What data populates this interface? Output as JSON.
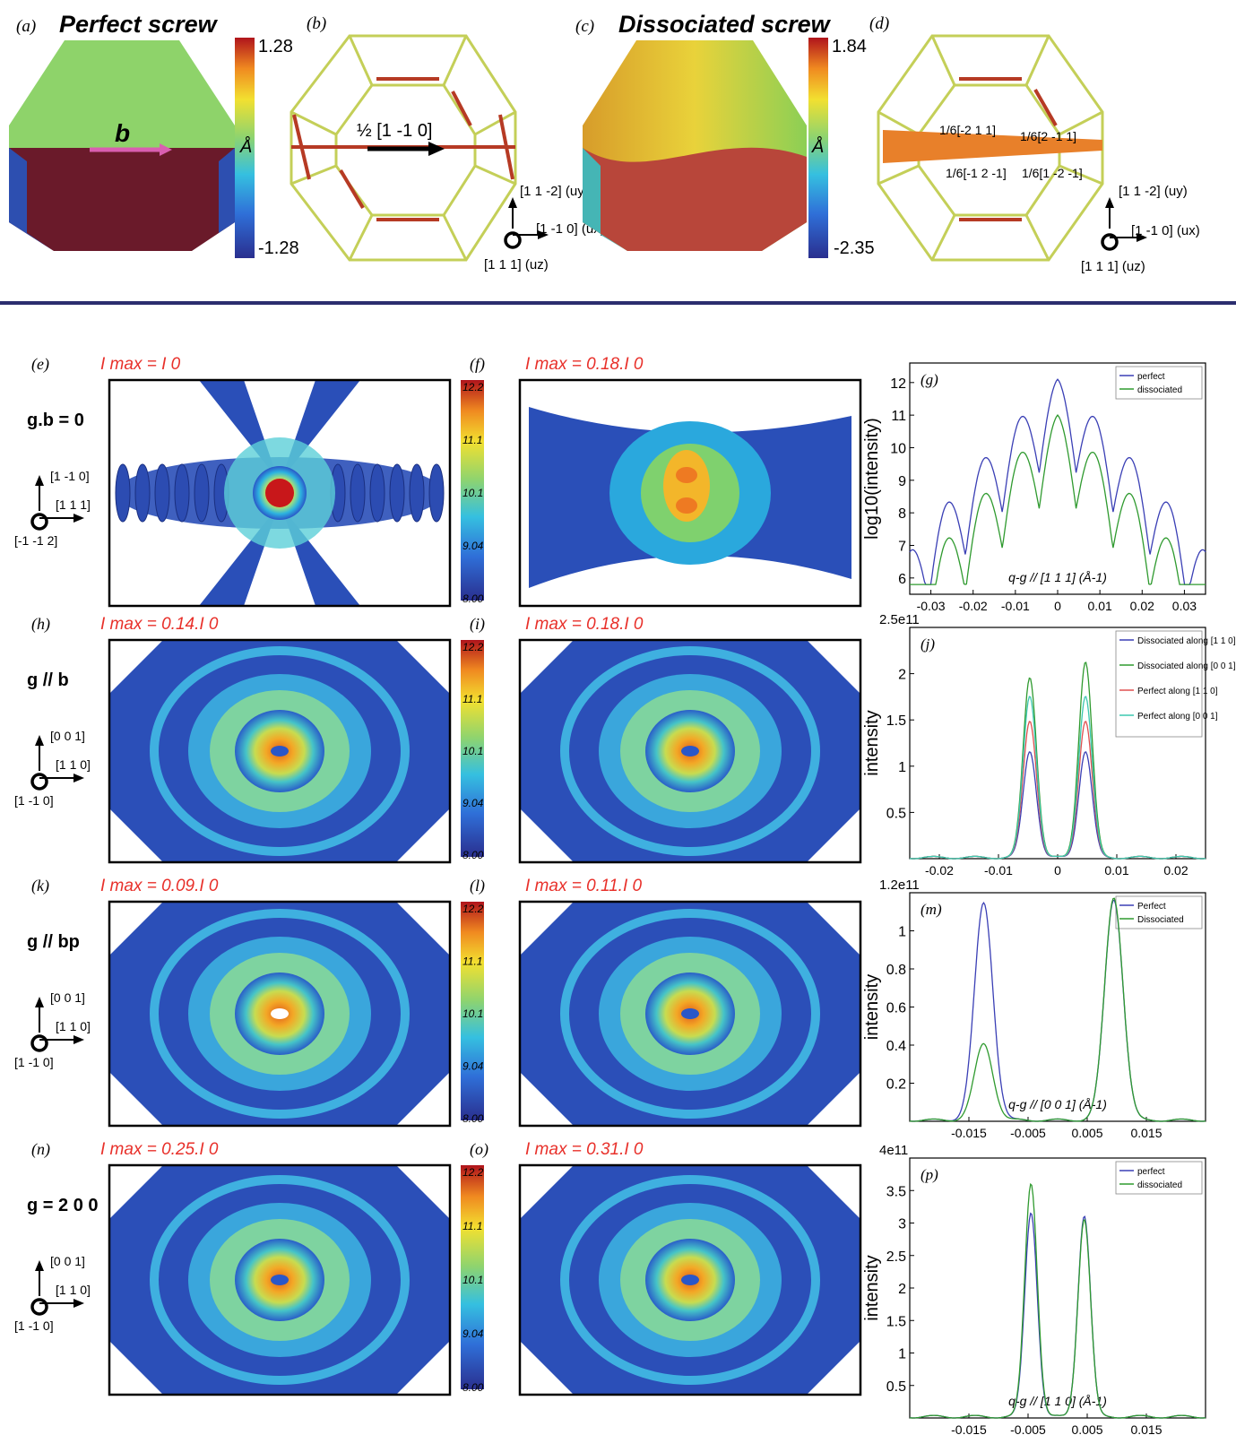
{
  "figure": {
    "top_panels": [
      {
        "letter": "(a)",
        "title": "Perfect screw",
        "vector_label": "b"
      },
      {
        "letter": "(b)",
        "burgers_label": "½ [1 -1 0]"
      },
      {
        "letter": "(c)",
        "title": "Dissociated screw"
      },
      {
        "letter": "(d)",
        "partials": [
          "1/6[-2 1 1]",
          "1/6[2 -1 1]",
          "1/6[-1 2 -1]",
          "1/6[1 -2 -1]"
        ]
      }
    ],
    "colorbars_top": [
      {
        "max": "1.28",
        "min": "-1.28",
        "unit": "Å"
      },
      {
        "max": "1.84",
        "min": "-2.35",
        "unit": "Å"
      }
    ],
    "axes_top": {
      "uy": "[1 1 -2] (uy)",
      "ux": "[1 -1 0] (ux)",
      "uz": "[1 1 1] (uz)"
    },
    "rows": [
      {
        "letters": [
          "(e)",
          "(f)",
          "(g)"
        ],
        "imax_left": "I max = I 0",
        "imax_right": "I max = 0.18.I 0",
        "condition": "g.b = 0",
        "axes": {
          "up": "[1 -1 0]",
          "right": "[1 1 1]",
          "out": "[-1 -1 2]"
        }
      },
      {
        "letters": [
          "(h)",
          "(i)",
          "(j)"
        ],
        "imax_left": "I max = 0.14.I 0",
        "imax_right": "I max = 0.18.I 0",
        "condition": "g // b",
        "axes": {
          "up": "[0 0 1]",
          "right": "[1 1 0]",
          "out": "[1 -1 0]"
        }
      },
      {
        "letters": [
          "(k)",
          "(l)",
          "(m)"
        ],
        "imax_left": "I max = 0.09.I 0",
        "imax_right": "I max = 0.11.I 0",
        "condition": "g // bp",
        "axes": {
          "up": "[0 0 1]",
          "right": "[1 1 0]",
          "out": "[1 -1 0]"
        }
      },
      {
        "letters": [
          "(n)",
          "(o)",
          "(p)"
        ],
        "imax_left": "I max = 0.25.I 0",
        "imax_right": "I max = 0.31.I 0",
        "condition": "g = 2 0 0",
        "axes": {
          "up": "[0 0 1]",
          "right": "[1 1 0]",
          "out": "[1 -1 0]"
        }
      }
    ],
    "colorbar_ticks": [
      "12.2",
      "11.1",
      "10.1",
      "9.04",
      "8.00"
    ],
    "colors": {
      "divider": "#2b2d6e",
      "imax": "#e8302a",
      "perfect": "#3a3fb5",
      "dissociated": "#2f9a2f",
      "perfect_alt": "#e05050",
      "perfect_alt2": "#3cc8b0"
    }
  },
  "chart_data": [
    {
      "type": "line",
      "panel": "(g)",
      "xlabel": "q-g // [1 1 1] (Å-1)",
      "ylabel": "log10(intensity)",
      "xlim": [
        -0.035,
        0.035
      ],
      "ylim": [
        5.5,
        12.6
      ],
      "xticks": [
        "-0.03",
        "-0.02",
        "-0.01",
        "0",
        "0.01",
        "0.02",
        "0.03"
      ],
      "yticks": [
        "6",
        "7",
        "8",
        "9",
        "10",
        "11",
        "12"
      ],
      "legend": [
        "perfect",
        "dissociated"
      ],
      "series": [
        {
          "name": "perfect",
          "peak": 12.1
        },
        {
          "name": "dissociated",
          "peak": 11.0
        }
      ]
    },
    {
      "type": "line",
      "panel": "(j)",
      "xlabel": "",
      "ylabel": "intensity",
      "scale_label": "2.5e11",
      "xlim": [
        -0.025,
        0.025
      ],
      "ylim": [
        0,
        2.5
      ],
      "xticks": [
        "-0.02",
        "-0.01",
        "0",
        "0.01",
        "0.02"
      ],
      "yticks": [
        "0.5",
        "1",
        "1.5",
        "2"
      ],
      "legend": [
        "Dissociated along [1 1 0]",
        "Dissociated along [0 0 1]",
        "Perfect along [1 1 0]",
        "Perfect along [0 0 1]"
      ],
      "series": [
        {
          "name": "Dissociated along [1 1 0]",
          "peaks": [
            1.15,
            1.15
          ]
        },
        {
          "name": "Dissociated along [0 0 1]",
          "peaks": [
            1.95,
            2.12
          ]
        },
        {
          "name": "Perfect along [1 1 0]",
          "peaks": [
            1.48,
            1.48
          ]
        },
        {
          "name": "Perfect along [0 0 1]",
          "peaks": [
            1.75,
            1.75
          ]
        }
      ]
    },
    {
      "type": "line",
      "panel": "(m)",
      "xlabel": "q-g // [0 0 1] (Å-1)",
      "ylabel": "intensity",
      "scale_label": "1.2e11",
      "xlim": [
        -0.025,
        0.025
      ],
      "ylim": [
        0,
        1.2
      ],
      "xticks": [
        "-0.015",
        "-0.005",
        "0.005",
        "0.015"
      ],
      "yticks": [
        "0.2",
        "0.4",
        "0.6",
        "0.8",
        "1"
      ],
      "legend": [
        "Perfect",
        "Dissociated"
      ],
      "series": [
        {
          "name": "Perfect",
          "peaks": [
            1.14,
            1.16
          ]
        },
        {
          "name": "Dissociated",
          "peaks": [
            0.4,
            1.17
          ]
        }
      ]
    },
    {
      "type": "line",
      "panel": "(p)",
      "xlabel": "q-g // [1 1 0] (Å-1)",
      "ylabel": "intensity",
      "scale_label": "4e11",
      "xlim": [
        -0.025,
        0.025
      ],
      "ylim": [
        0,
        4.0
      ],
      "xticks": [
        "-0.015",
        "-0.005",
        "0.005",
        "0.015"
      ],
      "yticks": [
        "0.5",
        "1",
        "1.5",
        "2",
        "2.5",
        "3",
        "3.5"
      ],
      "legend": [
        "perfect",
        "dissociated"
      ],
      "series": [
        {
          "name": "perfect",
          "peaks": [
            3.15,
            3.1
          ]
        },
        {
          "name": "dissociated",
          "peaks": [
            3.6,
            3.05
          ]
        }
      ]
    }
  ]
}
